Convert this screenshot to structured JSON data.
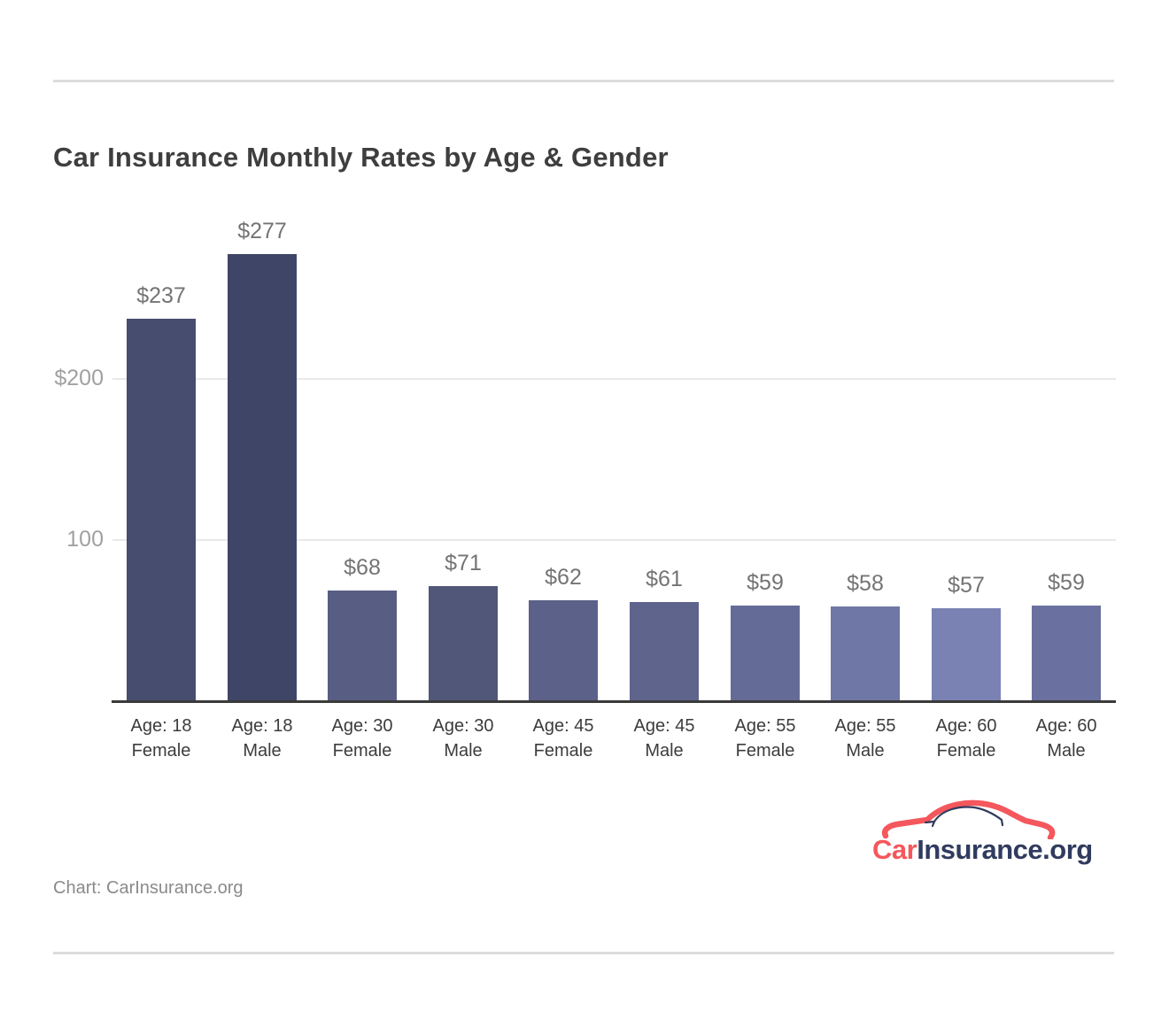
{
  "page": {
    "credit": "Chart: CarInsurance.org"
  },
  "logo": {
    "text_car": "Car",
    "text_insurance": "Insurance",
    "text_tld": ".org",
    "color_car": "#f4575c",
    "color_navy": "#303b5e"
  },
  "chart_data": {
    "type": "bar",
    "title": "Car Insurance Monthly Rates by Age & Gender",
    "categories": [
      {
        "line1": "Age: 18",
        "line2": "Female"
      },
      {
        "line1": "Age: 18",
        "line2": "Male"
      },
      {
        "line1": "Age: 30",
        "line2": "Female"
      },
      {
        "line1": "Age: 30",
        "line2": "Male"
      },
      {
        "line1": "Age: 45",
        "line2": "Female"
      },
      {
        "line1": "Age: 45",
        "line2": "Male"
      },
      {
        "line1": "Age: 55",
        "line2": "Female"
      },
      {
        "line1": "Age: 55",
        "line2": "Male"
      },
      {
        "line1": "Age: 60",
        "line2": "Female"
      },
      {
        "line1": "Age: 60",
        "line2": "Male"
      }
    ],
    "values": [
      237,
      277,
      68,
      71,
      62,
      61,
      59,
      58,
      57,
      59
    ],
    "value_labels": [
      "$237",
      "$277",
      "$68",
      "$71",
      "$62",
      "$61",
      "$59",
      "$58",
      "$57",
      "$59"
    ],
    "bar_colors": [
      "#474d6f",
      "#3f4566",
      "#585e83",
      "#515779",
      "#5b6189",
      "#5e648c",
      "#646b96",
      "#6f77a6",
      "#7a82b4",
      "#6a71a0"
    ],
    "yticks": [
      {
        "value": 200,
        "label": "$200"
      },
      {
        "value": 100,
        "label": "100"
      }
    ],
    "ylim": [
      0,
      307
    ],
    "xlabel": "",
    "ylabel": "",
    "grid": "horizontal",
    "legend": "none"
  }
}
